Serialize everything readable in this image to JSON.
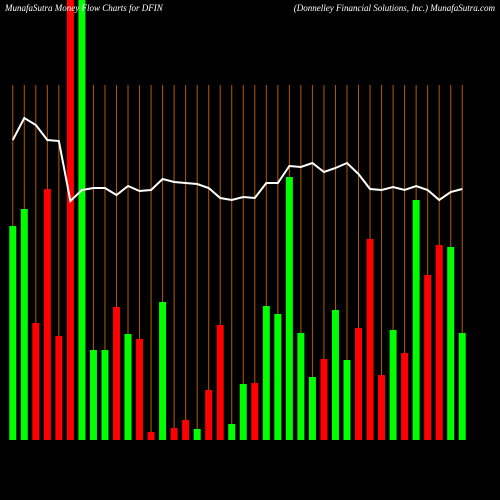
{
  "chart_data": {
    "type": "bar",
    "title": "MunafaSutra Money Flow Charts for DFIN",
    "subtitle": "(Donnelley Financial Solutions, Inc.) MunafaSutra.com",
    "ylim": [
      0,
      440
    ],
    "series": [
      {
        "name": "money flow",
        "colors": [
          "#00ff00",
          "#00ff00",
          "#ff0000",
          "#ff0000",
          "#ff0000",
          "#ff0000",
          "#00ff00",
          "#00ff00",
          "#00ff00",
          "#ff0000",
          "#00ff00",
          "#ff0000",
          "#ff0000",
          "#00ff00",
          "#ff0000",
          "#ff0000",
          "#00ff00",
          "#ff0000",
          "#ff0000",
          "#00ff00",
          "#00ff00",
          "#ff0000",
          "#00ff00",
          "#00ff00",
          "#00ff00",
          "#00ff00",
          "#00ff00",
          "#ff0000",
          "#00ff00",
          "#00ff00",
          "#ff0000",
          "#ff0000",
          "#ff0000",
          "#00ff00",
          "#ff0000",
          "#00ff00",
          "#ff0000",
          "#ff0000",
          "#00ff00",
          "#00ff00"
        ],
        "values": [
          214,
          231,
          117,
          251,
          104,
          460,
          460,
          90,
          90,
          133,
          106,
          101,
          8,
          138,
          12,
          20,
          11,
          50,
          115,
          16,
          56,
          57,
          134,
          126,
          263,
          107,
          63,
          81,
          130,
          80,
          112,
          201,
          65,
          110,
          87,
          240,
          165,
          195,
          193,
          107
        ]
      },
      {
        "name": "price",
        "color": "#ffffff",
        "values": [
          300,
          322,
          315,
          300,
          299,
          239,
          250,
          252,
          252,
          245,
          254,
          249,
          250,
          261,
          258,
          257,
          256,
          252,
          242,
          240,
          243,
          242,
          257,
          257,
          274,
          273,
          277,
          268,
          272,
          277,
          266,
          251,
          250,
          253,
          250,
          254,
          250,
          240,
          248,
          251
        ]
      }
    ]
  }
}
